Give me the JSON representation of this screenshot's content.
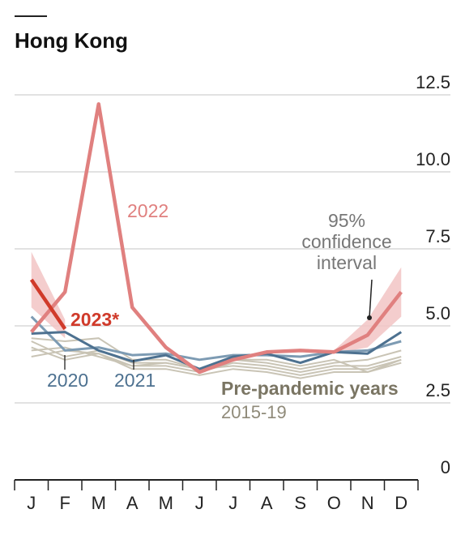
{
  "chart_data": {
    "type": "line",
    "title": "Hong Kong",
    "categories": [
      "J",
      "F",
      "M",
      "A",
      "M",
      "J",
      "J",
      "A",
      "S",
      "O",
      "N",
      "D"
    ],
    "ylim": [
      0,
      12.5
    ],
    "yticks": [
      0,
      2.5,
      {
        "value": 5,
        "label": "5.0"
      },
      7.5,
      {
        "value": 10,
        "label": "10.0"
      },
      12.5
    ],
    "grid": true,
    "pre_pandemic": {
      "label": "Pre-pandemic years",
      "sublabel": "2015-19",
      "color": "#c9c4b5",
      "lines": [
        [
          4.5,
          4.0,
          4.2,
          3.8,
          3.8,
          3.6,
          3.9,
          3.8,
          3.6,
          3.8,
          3.9,
          4.2
        ],
        [
          4.3,
          3.9,
          4.1,
          3.7,
          3.7,
          3.5,
          3.8,
          3.7,
          3.5,
          3.7,
          3.7,
          4.0
        ],
        [
          4.6,
          4.5,
          4.6,
          3.9,
          3.9,
          3.6,
          3.9,
          3.9,
          3.7,
          3.9,
          3.5,
          3.9
        ],
        [
          4.2,
          4.3,
          4.0,
          3.7,
          3.8,
          3.6,
          3.7,
          3.6,
          3.4,
          3.6,
          3.6,
          3.9
        ],
        [
          4.0,
          4.2,
          4.1,
          3.6,
          3.6,
          3.4,
          3.6,
          3.5,
          3.3,
          3.5,
          3.5,
          3.8
        ]
      ]
    },
    "confidence_interval": {
      "label_lines": [
        "95%",
        "confidence",
        "interval"
      ],
      "color": "#f2c4c4",
      "lower": [
        5.6,
        4.6,
        null,
        null,
        null,
        null,
        null,
        null,
        null,
        4.1,
        4.3,
        5.3
      ],
      "upper": [
        7.4,
        5.2,
        null,
        null,
        null,
        null,
        null,
        null,
        null,
        4.2,
        5.2,
        6.9
      ]
    },
    "series": [
      {
        "name": "2021",
        "color": "#7d9bb3",
        "values": [
          5.3,
          4.2,
          4.3,
          4.05,
          4.1,
          3.9,
          4.05,
          4.05,
          4.0,
          4.15,
          4.2,
          4.5
        ]
      },
      {
        "name": "2020",
        "color": "#4d7190",
        "values": [
          4.75,
          4.8,
          4.2,
          3.85,
          4.05,
          3.6,
          4.0,
          4.1,
          3.8,
          4.15,
          4.1,
          4.8
        ]
      },
      {
        "name": "2022",
        "color": "#e0807f",
        "values": [
          4.8,
          6.1,
          12.2,
          5.6,
          4.3,
          3.5,
          3.9,
          4.15,
          4.2,
          4.15,
          4.7,
          6.1
        ]
      },
      {
        "name": "2023*",
        "color": "#d03a2a",
        "values": [
          6.5,
          4.9,
          null,
          null,
          null,
          null,
          null,
          null,
          null,
          null,
          null,
          null
        ]
      }
    ]
  }
}
